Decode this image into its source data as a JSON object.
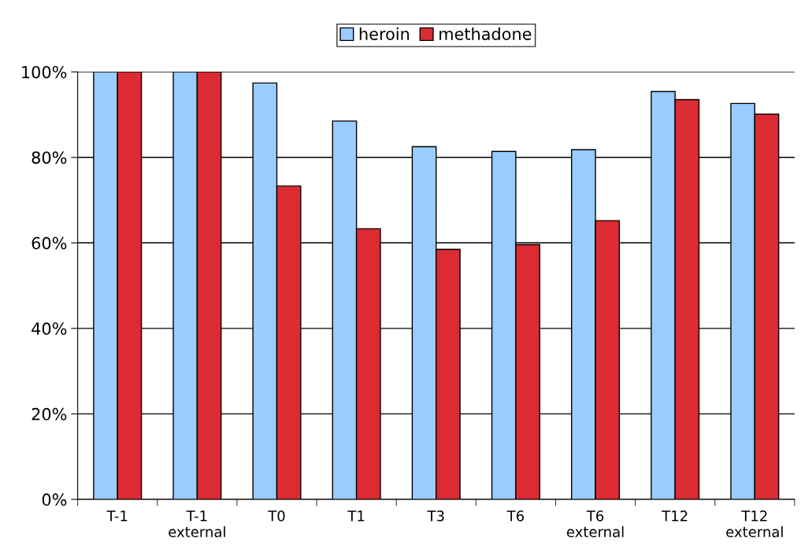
{
  "chart_data": {
    "type": "bar",
    "categories": [
      "T-1",
      "T-1\nexternal",
      "T0",
      "T1",
      "T3",
      "T6",
      "T6\nexternal",
      "T12",
      "T12\nexternal"
    ],
    "series": [
      {
        "name": "heroin",
        "color": "#99ccff",
        "values": [
          100,
          100,
          97.4,
          88.5,
          82.5,
          81.4,
          81.8,
          95.4,
          92.6
        ]
      },
      {
        "name": "methadone",
        "color": "#dc2b32",
        "values": [
          100,
          100,
          73.3,
          63.3,
          58.5,
          59.6,
          65.2,
          93.5,
          90.1
        ]
      }
    ],
    "ylim": [
      0,
      100
    ],
    "yticks": [
      {
        "value": 0,
        "label": "0%"
      },
      {
        "value": 20,
        "label": "20%"
      },
      {
        "value": 40,
        "label": "40%"
      },
      {
        "value": 60,
        "label": "60%"
      },
      {
        "value": 80,
        "label": "80%"
      },
      {
        "value": 100,
        "label": "100%"
      }
    ],
    "grid": "y",
    "legend": "top"
  }
}
